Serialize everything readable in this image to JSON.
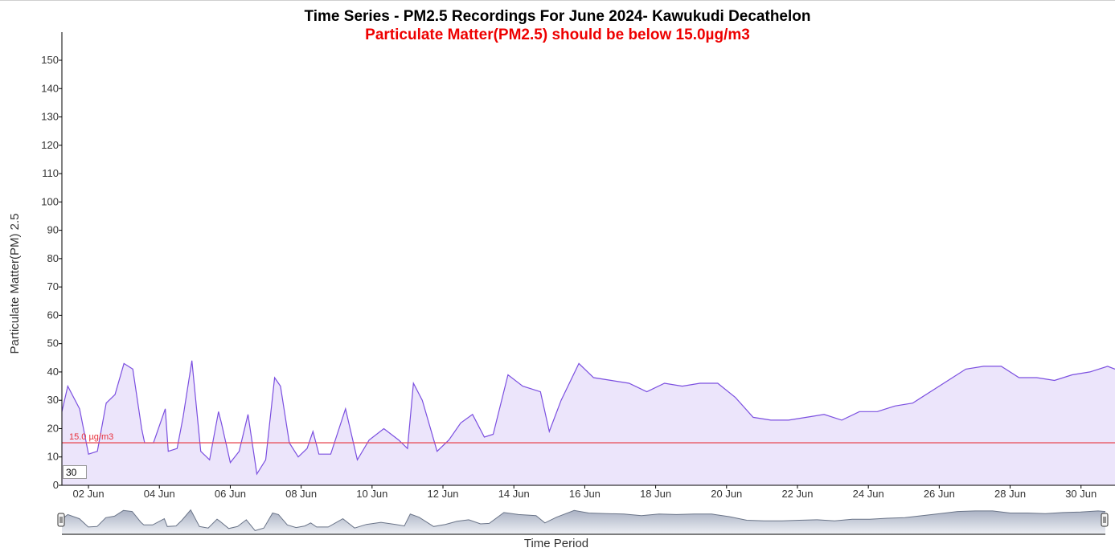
{
  "chart_data": {
    "type": "area",
    "title": "Time Series - PM2.5 Recordings For June 2024- Kawukudi Decathelon",
    "subtitle": "Particulate Matter(PM2.5) should be below 15.0µg/m3",
    "xlabel": "Time Period",
    "ylabel": "Particulate Matter(PM) 2.5",
    "ylim": [
      0,
      150
    ],
    "yticks": [
      0,
      10,
      20,
      30,
      40,
      50,
      60,
      70,
      80,
      90,
      100,
      110,
      120,
      130,
      140,
      150
    ],
    "xticks": [
      "02 Jun",
      "04 Jun",
      "06 Jun",
      "08 Jun",
      "10 Jun",
      "12 Jun",
      "14 Jun",
      "16 Jun",
      "18 Jun",
      "20 Jun",
      "22 Jun",
      "24 Jun",
      "26 Jun",
      "28 Jun",
      "30 Jun"
    ],
    "threshold": {
      "value": 15.0,
      "label": "15.0 µg/m3"
    },
    "grid": false,
    "series": [
      {
        "x": [
          "2024-06-01 06:00",
          "2024-06-01 10:00",
          "2024-06-01 18:00",
          "2024-06-02 00:00",
          "2024-06-02 06:00",
          "2024-06-02 12:00",
          "2024-06-02 18:00",
          "2024-06-03 00:00",
          "2024-06-03 06:00",
          "2024-06-03 12:00",
          "2024-06-03 14:00",
          "2024-06-03 20:00",
          "2024-06-04 04:00",
          "2024-06-04 06:00",
          "2024-06-04 12:00",
          "2024-06-04 16:00",
          "2024-06-04 22:00",
          "2024-06-05 04:00",
          "2024-06-05 10:00",
          "2024-06-05 16:00",
          "2024-06-05 18:00",
          "2024-06-06 00:00",
          "2024-06-06 06:00",
          "2024-06-06 12:00",
          "2024-06-06 18:00",
          "2024-06-07 00:00",
          "2024-06-07 06:00",
          "2024-06-07 10:00",
          "2024-06-07 16:00",
          "2024-06-07 22:00",
          "2024-06-08 04:00",
          "2024-06-08 08:00",
          "2024-06-08 12:00",
          "2024-06-08 20:00",
          "2024-06-09 06:00",
          "2024-06-09 14:00",
          "2024-06-09 22:00",
          "2024-06-10 08:00",
          "2024-06-10 18:00",
          "2024-06-11 00:00",
          "2024-06-11 04:00",
          "2024-06-11 10:00",
          "2024-06-11 20:00",
          "2024-06-12 04:00",
          "2024-06-12 12:00",
          "2024-06-12 20:00",
          "2024-06-13 04:00",
          "2024-06-13 10:00",
          "2024-06-13 20:00",
          "2024-06-14 06:00",
          "2024-06-14 18:00",
          "2024-06-15 00:00",
          "2024-06-15 08:00",
          "2024-06-15 20:00",
          "2024-06-16 06:00",
          "2024-06-16 18:00",
          "2024-06-17 06:00",
          "2024-06-17 18:00",
          "2024-06-18 06:00",
          "2024-06-18 18:00",
          "2024-06-19 06:00",
          "2024-06-19 18:00",
          "2024-06-20 06:00",
          "2024-06-20 18:00",
          "2024-06-21 06:00",
          "2024-06-21 18:00",
          "2024-06-22 06:00",
          "2024-06-22 18:00",
          "2024-06-23 06:00",
          "2024-06-23 18:00",
          "2024-06-24 06:00",
          "2024-06-24 18:00",
          "2024-06-25 06:00",
          "2024-06-25 18:00",
          "2024-06-26 06:00",
          "2024-06-26 18:00",
          "2024-06-27 06:00",
          "2024-06-27 18:00",
          "2024-06-28 06:00",
          "2024-06-28 18:00",
          "2024-06-29 06:00",
          "2024-06-29 18:00",
          "2024-06-30 06:00",
          "2024-06-30 18:00",
          "2024-06-30 23:00"
        ],
        "values": [
          26,
          35,
          27,
          11,
          12,
          29,
          32,
          43,
          41,
          20,
          15,
          15,
          27,
          12,
          13,
          24,
          44,
          12,
          9,
          26,
          22,
          8,
          12,
          25,
          4,
          9,
          38,
          35,
          15,
          10,
          13,
          19,
          11,
          11,
          27,
          9,
          16,
          20,
          16,
          13,
          36,
          30,
          12,
          16,
          22,
          25,
          17,
          18,
          39,
          35,
          33,
          19,
          30,
          43,
          38,
          37,
          36,
          33,
          36,
          35,
          36,
          36,
          31,
          24,
          23,
          23,
          24,
          25,
          23,
          26,
          26,
          28,
          29,
          33,
          37,
          41,
          42,
          42,
          38,
          38,
          37,
          39,
          40,
          42,
          41
        ]
      }
    ],
    "navigator": {
      "window_label": "30"
    }
  }
}
